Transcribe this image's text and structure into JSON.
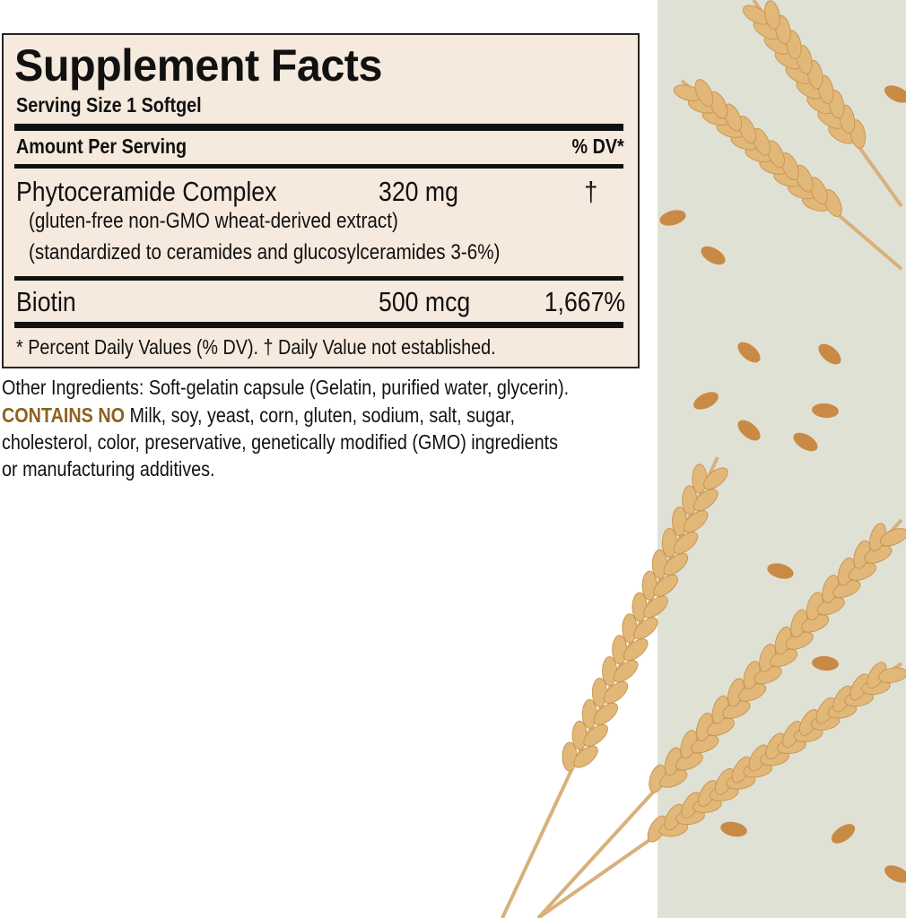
{
  "panel": {
    "title": "Supplement Facts",
    "serving_size": "Serving Size 1 Softgel",
    "amount_per_serving": "Amount Per Serving",
    "dv_header": "% DV*",
    "rows": [
      {
        "name": "Phytoceramide Complex",
        "amount": "320 mg",
        "dv": "†",
        "notes": [
          "(gluten-free non-GMO wheat-derived extract)",
          "(standardized to ceramides and glucosylceramides 3-6%)"
        ]
      },
      {
        "name": "Biotin",
        "amount": "500 mcg",
        "dv": "1,667%"
      }
    ],
    "footnote": "* Percent Daily Values (% DV). † Daily Value not established."
  },
  "other_ingredients": "Other Ingredients: Soft-gelatin capsule (Gelatin, purified water, glycerin).",
  "contains_no": {
    "label": "CONTAINS NO",
    "line1": " Milk, soy, yeast, corn, gluten, sodium, salt, sugar,",
    "line2": "cholesterol, color, preservative, genetically modified (GMO) ingredients",
    "line3": "or manufacturing additives."
  },
  "colors": {
    "panel_bg": "#f6e9dd",
    "accent": "#8c6220",
    "side_bg": "#e0e1d5",
    "wheat": "#e2b878"
  }
}
